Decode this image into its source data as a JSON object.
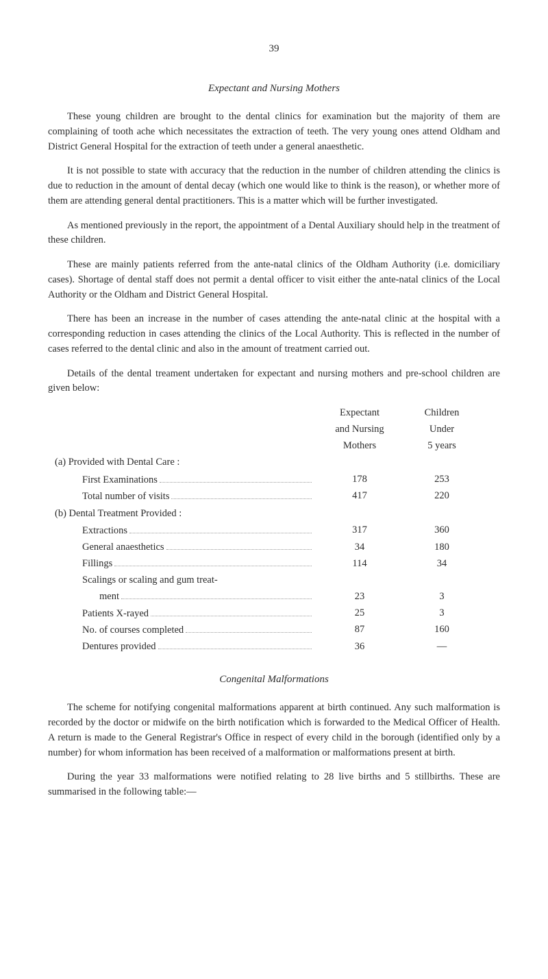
{
  "page_number": "39",
  "section1": {
    "title": "Expectant and Nursing Mothers",
    "p1": "These young children are brought to the dental clinics for examination but the majority of them are complaining of tooth ache which necessitates the extraction of teeth. The very young ones attend Oldham and District General Hospital for the extraction of teeth under a general anaesthetic.",
    "p2": "It is not possible to state with accuracy that the reduction in the number of children attending the clinics is due to reduction in the amount of dental decay (which one would like to think is the reason), or whether more of them are attending general dental practitioners. This is a matter which will be further investigated.",
    "p3": "As mentioned previously in the report, the appointment of a Dental Auxiliary should help in the treatment of these children.",
    "p4": "These are mainly patients referred from the ante-natal clinics of the Oldham Authority (i.e. domiciliary cases). Shortage of dental staff does not permit a dental officer to visit either the ante-natal clinics of the Local Authority or the Oldham and District General Hospital.",
    "p5": "There has been an increase in the number of cases attending the ante-natal clinic at the hospital with a corresponding reduction in cases attending the clinics of the Local Authority. This is reflected in the number of cases referred to the dental clinic and also in the amount of treatment carried out.",
    "p6": "Details of the dental treament undertaken for expectant and nursing mothers and pre-school children are given below:"
  },
  "table": {
    "header": {
      "col1_l1": "Expectant",
      "col1_l2": "and Nursing",
      "col1_l3": "Mothers",
      "col2_l1": "Children",
      "col2_l2": "Under",
      "col2_l3": "5 years"
    },
    "section_a": "(a) Provided with Dental Care :",
    "section_b": "(b) Dental Treatment Provided :",
    "rows": [
      {
        "label": "First Examinations",
        "v1": "178",
        "v2": "253"
      },
      {
        "label": "Total number of visits",
        "v1": "417",
        "v2": "220"
      },
      {
        "label": "Extractions",
        "v1": "317",
        "v2": "360"
      },
      {
        "label": "General anaesthetics",
        "v1": "34",
        "v2": "180"
      },
      {
        "label": "Fillings",
        "v1": "114",
        "v2": "34"
      },
      {
        "label": "Scalings or scaling and gum treat-",
        "v1": "",
        "v2": ""
      },
      {
        "label": "ment",
        "v1": "23",
        "v2": "3"
      },
      {
        "label": "Patients X-rayed",
        "v1": "25",
        "v2": "3"
      },
      {
        "label": "No. of courses completed",
        "v1": "87",
        "v2": "160"
      },
      {
        "label": "Dentures provided",
        "v1": "36",
        "v2": "—"
      }
    ]
  },
  "section2": {
    "title": "Congenital Malformations",
    "p1": "The scheme for notifying congenital malformations apparent at birth continued. Any such malformation is recorded by the doctor or midwife on the birth notification which is forwarded to the Medical Officer of Health. A return is made to the General Registrar's Office in respect of every child in the borough (identified only by a number) for whom information has been received of a malformation or malformations present at birth.",
    "p2": "During the year 33 malformations were notified relating to 28 live births and 5 stillbirths. These are summarised in the following table:—"
  }
}
